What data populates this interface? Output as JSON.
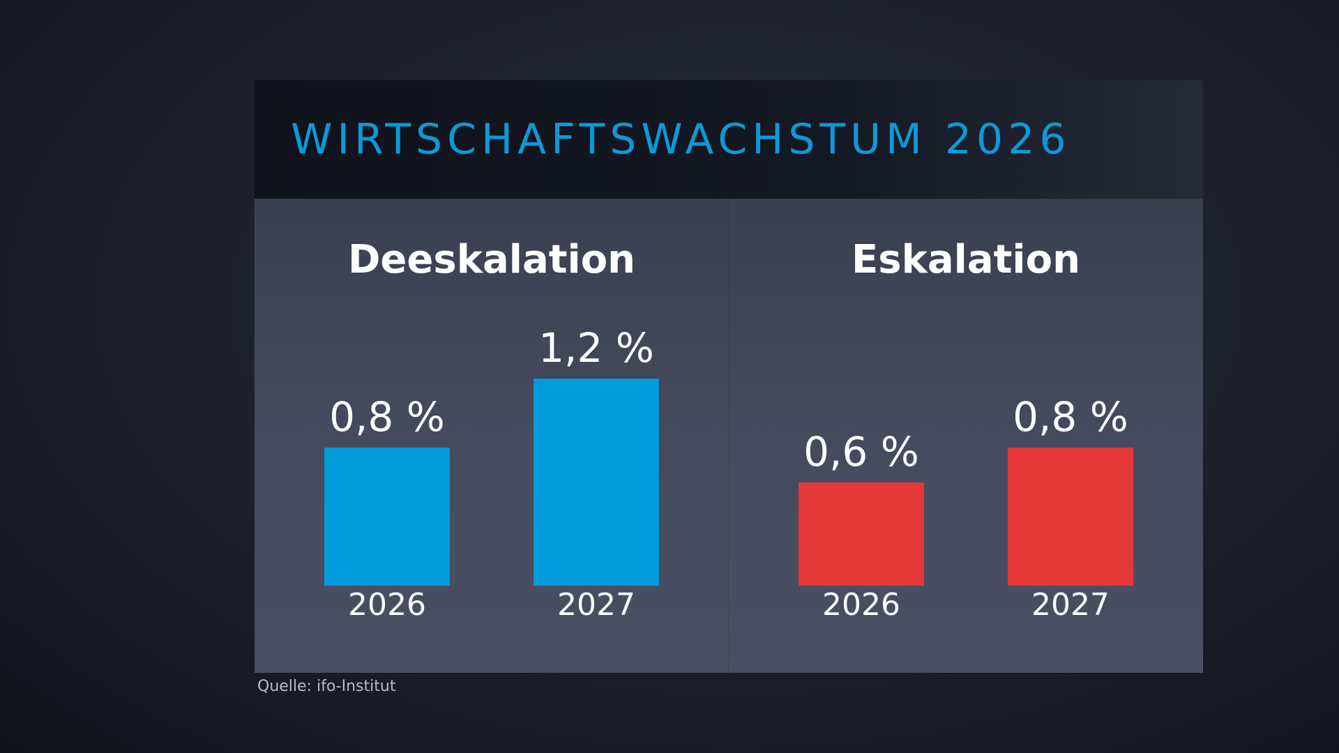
{
  "chart_data": {
    "type": "bar",
    "title": "WIRTSCHAFTSWACHSTUM 2026",
    "ylim": [
      0,
      1.4
    ],
    "grid": false,
    "groups": [
      {
        "name": "Deeskalation",
        "color": "#039bd9",
        "categories": [
          "2026",
          "2027"
        ],
        "values": [
          0.8,
          1.2
        ],
        "labels": [
          "0,8 %",
          "1,2 %"
        ]
      },
      {
        "name": "Eskalation",
        "color": "#e43838",
        "categories": [
          "2026",
          "2027"
        ],
        "values": [
          0.6,
          0.8
        ],
        "labels": [
          "0,6 %",
          "0,8 %"
        ]
      }
    ],
    "source": "Quelle: ifo-Institut"
  }
}
